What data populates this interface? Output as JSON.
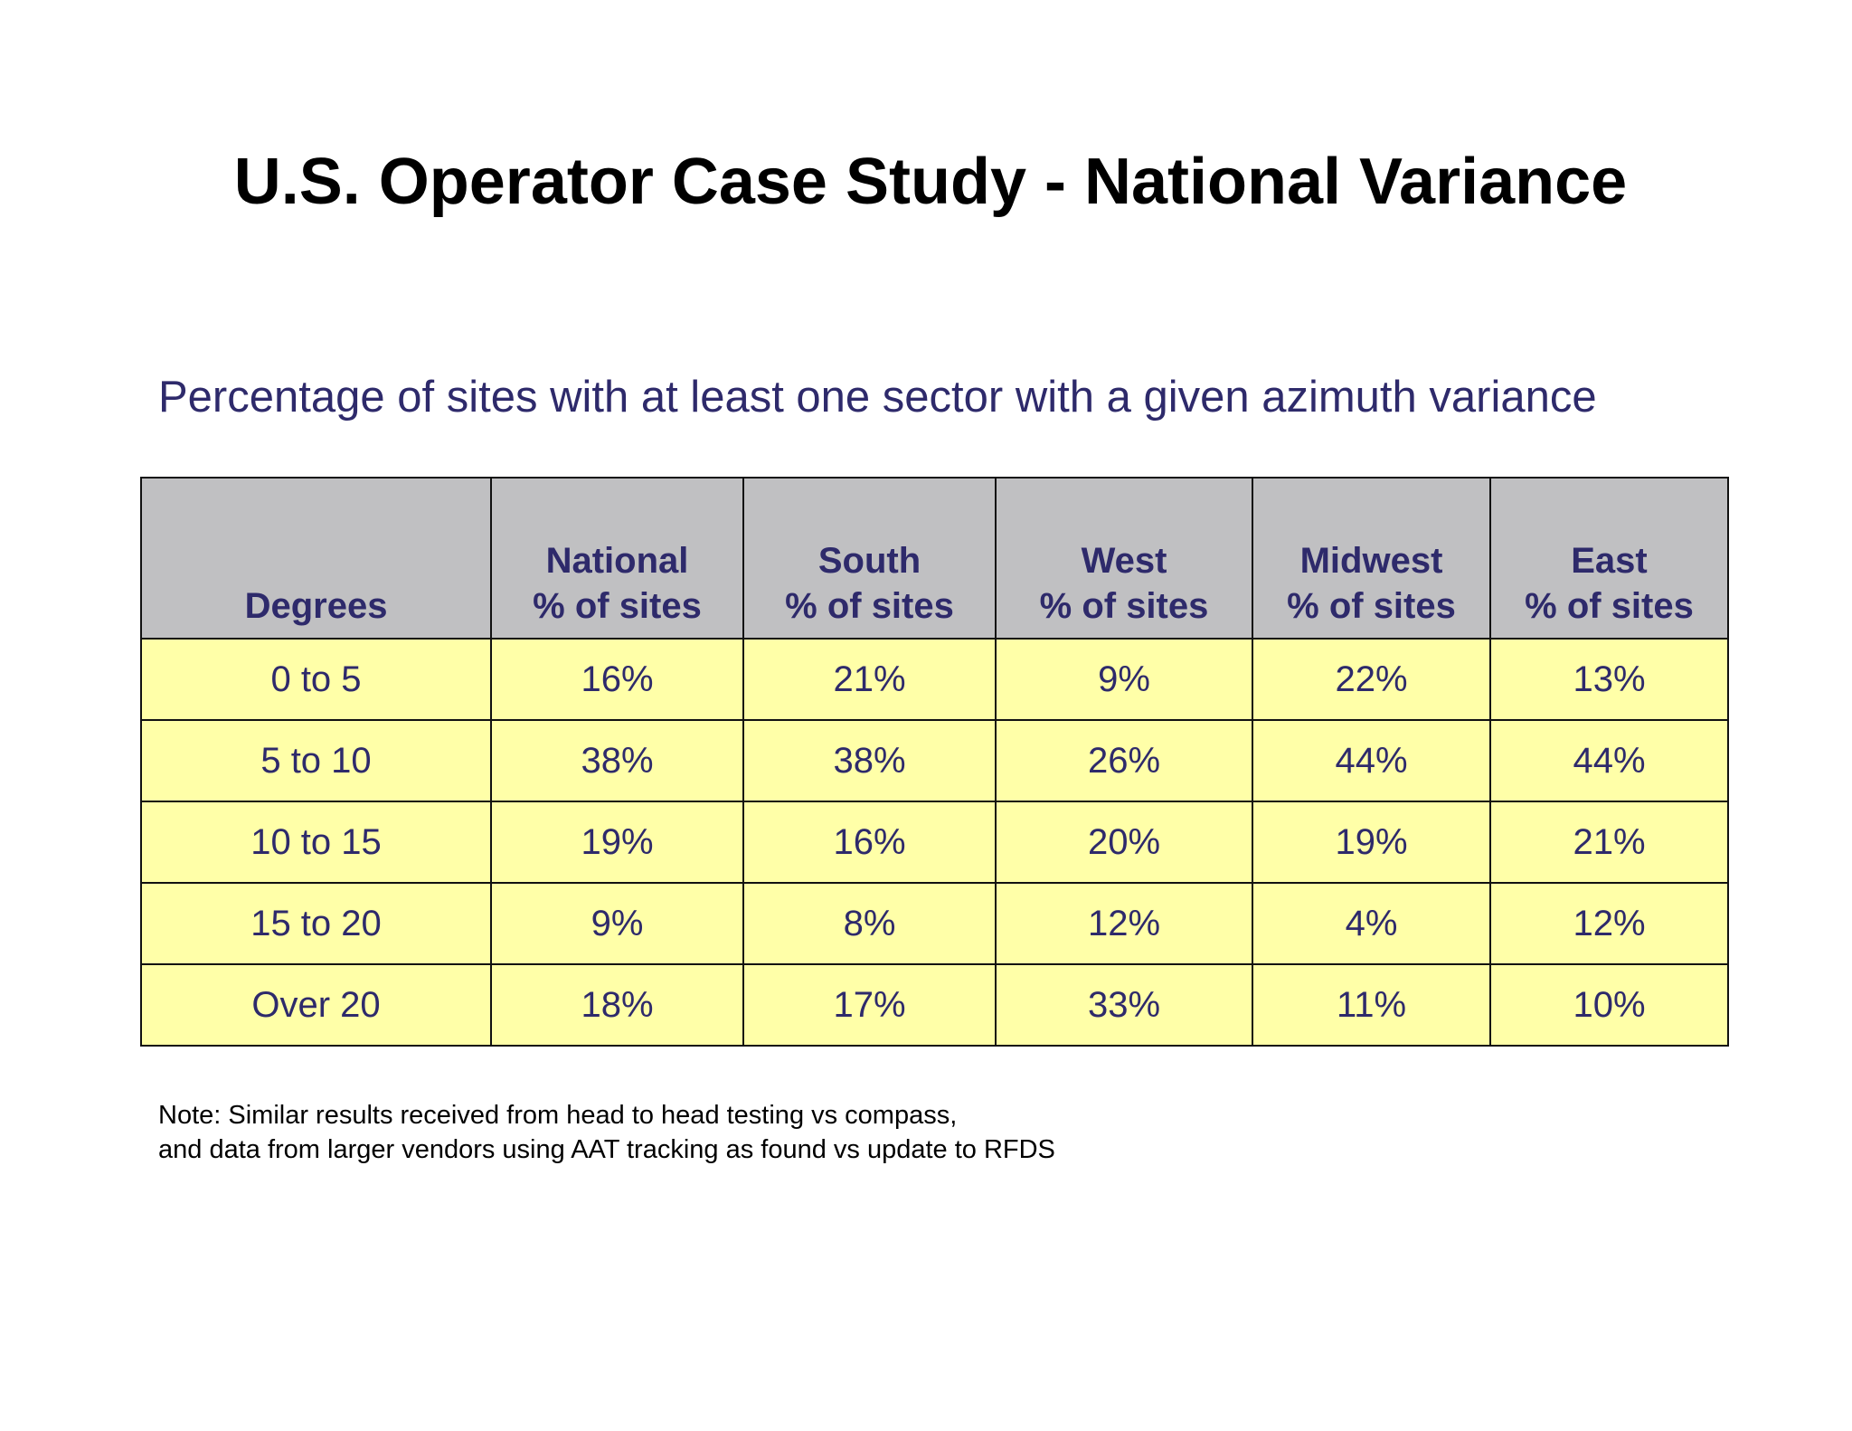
{
  "slide": {
    "title": "U.S. Operator Case Study - National Variance",
    "subtitle": "Percentage of sites with at least one sector with a given azimuth variance"
  },
  "table": {
    "headers": [
      {
        "line1": "",
        "line2": "Degrees"
      },
      {
        "line1": "National",
        "line2": "% of sites"
      },
      {
        "line1": "South",
        "line2": "% of sites"
      },
      {
        "line1": "West",
        "line2": "% of sites"
      },
      {
        "line1": "Midwest",
        "line2": "% of sites"
      },
      {
        "line1": "East",
        "line2": "% of sites"
      }
    ],
    "rows": [
      [
        "0 to 5",
        "16%",
        "21%",
        "9%",
        "22%",
        "13%"
      ],
      [
        "5 to 10",
        "38%",
        "38%",
        "26%",
        "44%",
        "44%"
      ],
      [
        "10 to 15",
        "19%",
        "16%",
        "20%",
        "19%",
        "21%"
      ],
      [
        "15 to 20",
        "9%",
        "8%",
        "12%",
        "4%",
        "12%"
      ],
      [
        "Over 20",
        "18%",
        "17%",
        "33%",
        "11%",
        "10%"
      ]
    ]
  },
  "note": {
    "line1": "Note:  Similar results received from head to head testing vs compass,",
    "line2": "and data from larger vendors using AAT tracking as found vs update to RFDS"
  },
  "colors": {
    "title": "#000000",
    "text_accent": "#2e2a6b",
    "header_bg": "#c0c0c2",
    "cell_bg": "#ffffa8"
  }
}
